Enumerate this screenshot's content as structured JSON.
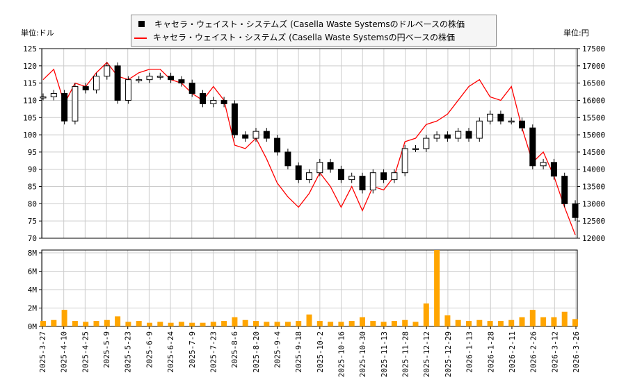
{
  "chart_data": {
    "type": "candlestick+line+bar",
    "left_unit_label": "単位:ドル",
    "right_unit_label": "単位:円",
    "legend": [
      {
        "name": "キャセラ・ウェイスト・システムズ (Casella Waste Systemsのドルベースの株価",
        "color": "#000000",
        "marker": "square"
      },
      {
        "name": "キャセラ・ウェイスト・システムズ (Casella Waste Systemsの円ベースの株価",
        "color": "#ff0000",
        "marker": "line"
      }
    ],
    "legend_position": "top-center",
    "grid": true,
    "ylim_left": [
      70,
      125
    ],
    "yticks_left": [
      70,
      75,
      80,
      85,
      90,
      95,
      100,
      105,
      110,
      115,
      120,
      125
    ],
    "ylim_right": [
      12000,
      17500
    ],
    "yticks_right": [
      12000,
      12500,
      13000,
      13500,
      14000,
      14500,
      15000,
      15500,
      16000,
      16500,
      17000,
      17500
    ],
    "volume_ylim": [
      0,
      8
    ],
    "volume_ticks": [
      "0M",
      "2M",
      "4M",
      "6M",
      "8M"
    ],
    "volume_color": "#ffa500",
    "xticks": [
      "2025-3-27",
      "2025-4-10",
      "2025-4-25",
      "2025-5-9",
      "2025-5-23",
      "2025-6-9",
      "2025-6-24",
      "2025-7-9",
      "2025-7-23",
      "2025-8-6",
      "2025-8-20",
      "2025-9-4",
      "2025-9-18",
      "2025-10-2",
      "2025-10-16",
      "2025-10-30",
      "2025-11-13",
      "2025-11-28",
      "2025-12-12",
      "2025-12-29",
      "2026-1-13",
      "2026-1-28",
      "2026-2-11",
      "2026-2-26",
      "2026-3-12",
      "2026-3-26"
    ],
    "x": [
      "2025-3-27",
      "2025-4-3",
      "2025-4-10",
      "2025-4-17",
      "2025-4-25",
      "2025-5-2",
      "2025-5-9",
      "2025-5-16",
      "2025-5-23",
      "2025-5-30",
      "2025-6-9",
      "2025-6-16",
      "2025-6-24",
      "2025-7-1",
      "2025-7-9",
      "2025-7-16",
      "2025-7-23",
      "2025-7-30",
      "2025-8-6",
      "2025-8-13",
      "2025-8-20",
      "2025-8-27",
      "2025-9-4",
      "2025-9-11",
      "2025-9-18",
      "2025-9-25",
      "2025-10-2",
      "2025-10-9",
      "2025-10-16",
      "2025-10-23",
      "2025-10-30",
      "2025-11-6",
      "2025-11-13",
      "2025-11-20",
      "2025-11-28",
      "2025-12-5",
      "2025-12-12",
      "2025-12-19",
      "2025-12-29",
      "2026-1-6",
      "2026-1-13",
      "2026-1-20",
      "2026-1-28",
      "2026-2-4",
      "2026-2-11",
      "2026-2-18",
      "2026-2-26",
      "2026-3-5",
      "2026-3-12",
      "2026-3-19",
      "2026-3-26"
    ],
    "usd_close": [
      111,
      112,
      104,
      114,
      113,
      117,
      120,
      110,
      116,
      116,
      117,
      117,
      116,
      115,
      112,
      109,
      110,
      109,
      100,
      99,
      101,
      99,
      95,
      91,
      87,
      89,
      92,
      90,
      87,
      88,
      84,
      89,
      87,
      89,
      96,
      96,
      99,
      100,
      99,
      101,
      99,
      104,
      106,
      104,
      104,
      102,
      91,
      92,
      88,
      80,
      76
    ],
    "jpy_close": [
      16600,
      16900,
      15900,
      16500,
      16400,
      16800,
      17100,
      16700,
      16600,
      16800,
      16900,
      16900,
      16600,
      16500,
      16200,
      16000,
      16400,
      16000,
      14700,
      14600,
      14900,
      14300,
      13600,
      13200,
      12900,
      13300,
      13900,
      13500,
      12900,
      13500,
      12800,
      13500,
      13400,
      13800,
      14800,
      14900,
      15300,
      15400,
      15600,
      16000,
      16400,
      16600,
      16100,
      16000,
      16400,
      15200,
      14200,
      14500,
      13800,
      12900,
      12100
    ],
    "volume_millions": [
      0.6,
      0.7,
      1.8,
      0.6,
      0.5,
      0.6,
      0.7,
      1.1,
      0.5,
      0.6,
      0.4,
      0.5,
      0.4,
      0.5,
      0.4,
      0.4,
      0.5,
      0.6,
      1.0,
      0.7,
      0.6,
      0.5,
      0.5,
      0.5,
      0.6,
      1.3,
      0.6,
      0.5,
      0.5,
      0.6,
      1.0,
      0.6,
      0.5,
      0.6,
      0.7,
      0.5,
      2.5,
      8.3,
      1.2,
      0.7,
      0.6,
      0.7,
      0.6,
      0.6,
      0.7,
      1.0,
      1.8,
      1.0,
      1.0,
      1.6,
      0.8
    ]
  }
}
